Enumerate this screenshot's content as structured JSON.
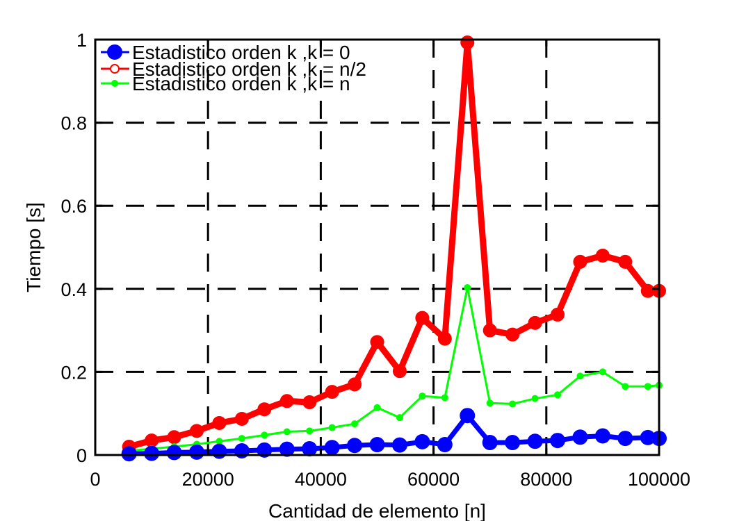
{
  "chart_data": {
    "type": "line",
    "xlabel": "Cantidad de elemento [n]",
    "ylabel": "Tiempo [s]",
    "xlim": [
      0,
      100000
    ],
    "ylim": [
      0,
      1
    ],
    "xticks": [
      0,
      20000,
      40000,
      60000,
      80000,
      100000
    ],
    "yticks": [
      0,
      0.2,
      0.4,
      0.6,
      0.8,
      1
    ],
    "xtick_labels": [
      "0",
      "20000",
      "40000",
      "60000",
      "80000",
      "100000"
    ],
    "ytick_labels": [
      "0",
      "0.2",
      "0.4",
      "0.6",
      "0.8",
      "1"
    ],
    "grid": true,
    "legend_position": "top-left",
    "x": [
      6000,
      10000,
      14000,
      18000,
      22000,
      26000,
      30000,
      34000,
      38000,
      42000,
      46000,
      50000,
      54000,
      58000,
      62000,
      66000,
      70000,
      74000,
      78000,
      82000,
      86000,
      90000,
      94000,
      98000,
      100000
    ],
    "series": [
      {
        "name": "Estadistico orden k ,k = 0",
        "color": "#0000ff",
        "marker": "filled-circle-large",
        "values": [
          0.003,
          0.004,
          0.006,
          0.007,
          0.009,
          0.01,
          0.012,
          0.014,
          0.015,
          0.018,
          0.023,
          0.025,
          0.024,
          0.032,
          0.025,
          0.095,
          0.03,
          0.03,
          0.033,
          0.035,
          0.043,
          0.046,
          0.04,
          0.042,
          0.04
        ]
      },
      {
        "name": "Estadistico orden k ,k = n/2",
        "color": "#ff0000",
        "marker": "open-circle",
        "values": [
          0.02,
          0.035,
          0.043,
          0.058,
          0.077,
          0.087,
          0.11,
          0.13,
          0.127,
          0.152,
          0.17,
          0.272,
          0.202,
          0.33,
          0.28,
          0.993,
          0.3,
          0.29,
          0.318,
          0.338,
          0.465,
          0.48,
          0.465,
          0.395,
          0.395
        ]
      },
      {
        "name": "Estadistico orden k ,k = n",
        "color": "#00ff00",
        "marker": "small-dot",
        "values": [
          0.01,
          0.015,
          0.02,
          0.026,
          0.033,
          0.04,
          0.048,
          0.056,
          0.058,
          0.066,
          0.075,
          0.114,
          0.09,
          0.142,
          0.138,
          0.403,
          0.125,
          0.123,
          0.136,
          0.145,
          0.19,
          0.2,
          0.165,
          0.165,
          0.168
        ]
      }
    ]
  }
}
